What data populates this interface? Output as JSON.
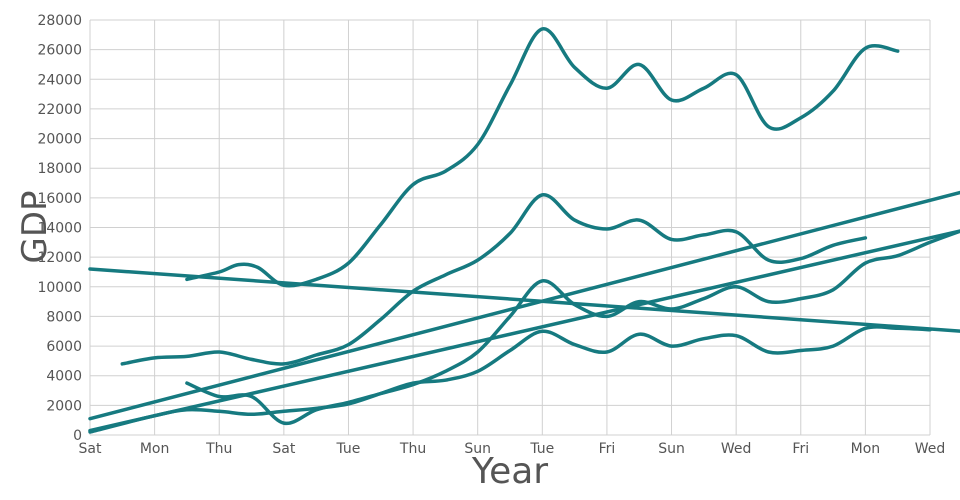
{
  "chart_data": {
    "type": "line",
    "xlabel": "Year",
    "ylabel": "GDP",
    "ylim": [
      0,
      28000
    ],
    "y_ticks": [
      0,
      2000,
      4000,
      6000,
      8000,
      10000,
      12000,
      14000,
      16000,
      18000,
      20000,
      22000,
      24000,
      26000,
      28000
    ],
    "x_ticks": [
      "Sat",
      "Mon",
      "Thu",
      "Sat",
      "Tue",
      "Thu",
      "Sun",
      "Tue",
      "Fri",
      "Sun",
      "Wed",
      "Fri",
      "Mon",
      "Wed"
    ],
    "grid": true,
    "line_color": "#167a80",
    "grid_color": "#d0d0d0",
    "series": [
      {
        "points": [
          [
            0.5,
            4800
          ],
          [
            1,
            5200
          ],
          [
            1.5,
            5300
          ],
          [
            2,
            5600
          ],
          [
            2.5,
            5100
          ],
          [
            3,
            4800
          ],
          [
            3.5,
            5400
          ],
          [
            4,
            6100
          ],
          [
            4.5,
            7800
          ],
          [
            5,
            9700
          ],
          [
            5.5,
            10800
          ],
          [
            6,
            11800
          ],
          [
            6.5,
            13600
          ],
          [
            7,
            16200
          ],
          [
            7.5,
            14500
          ],
          [
            8,
            13900
          ],
          [
            8.5,
            14500
          ],
          [
            9,
            13200
          ],
          [
            9.5,
            13500
          ],
          [
            10,
            13700
          ],
          [
            10.5,
            11800
          ],
          [
            11,
            11900
          ],
          [
            11.5,
            12800
          ],
          [
            12,
            13300
          ]
        ]
      },
      {
        "points": [
          [
            1.5,
            10500
          ],
          [
            2,
            11000
          ],
          [
            2.3,
            11500
          ],
          [
            2.6,
            11300
          ],
          [
            3,
            10100
          ],
          [
            3.5,
            10500
          ],
          [
            4,
            11600
          ],
          [
            4.5,
            14200
          ],
          [
            5,
            16900
          ],
          [
            5.5,
            17800
          ],
          [
            6,
            19600
          ],
          [
            6.5,
            23600
          ],
          [
            7,
            27400
          ],
          [
            7.5,
            24800
          ],
          [
            8,
            23400
          ],
          [
            8.5,
            25000
          ],
          [
            9,
            22600
          ],
          [
            9.5,
            23400
          ],
          [
            10,
            24300
          ],
          [
            10.5,
            20800
          ],
          [
            11,
            21400
          ],
          [
            11.5,
            23200
          ],
          [
            12,
            26100
          ],
          [
            12.5,
            25900
          ]
        ]
      },
      {
        "points": [
          [
            0,
            200
          ],
          [
            1,
            1300
          ],
          [
            1.5,
            1700
          ],
          [
            2,
            1600
          ],
          [
            2.5,
            1400
          ],
          [
            3,
            1600
          ],
          [
            3.5,
            1800
          ],
          [
            4,
            2100
          ],
          [
            4.5,
            2800
          ],
          [
            5,
            3500
          ],
          [
            5.5,
            3700
          ],
          [
            6,
            4300
          ],
          [
            6.5,
            5700
          ],
          [
            7,
            7000
          ],
          [
            7.5,
            6100
          ],
          [
            8,
            5600
          ],
          [
            8.5,
            6800
          ],
          [
            9,
            6000
          ],
          [
            9.5,
            6500
          ],
          [
            10,
            6700
          ],
          [
            10.5,
            5600
          ],
          [
            11,
            5700
          ],
          [
            11.5,
            6000
          ],
          [
            12,
            7200
          ],
          [
            12.5,
            7200
          ],
          [
            13,
            7100
          ]
        ]
      },
      {
        "points": [
          [
            1.5,
            3500
          ],
          [
            2,
            2600
          ],
          [
            2.5,
            2600
          ],
          [
            3,
            800
          ],
          [
            3.5,
            1700
          ],
          [
            4,
            2200
          ],
          [
            4.5,
            2800
          ],
          [
            5,
            3400
          ],
          [
            5.5,
            4300
          ],
          [
            6,
            5600
          ],
          [
            6.5,
            8000
          ],
          [
            7,
            10400
          ],
          [
            7.5,
            8800
          ],
          [
            8,
            8000
          ],
          [
            8.5,
            9000
          ],
          [
            9,
            8500
          ],
          [
            9.5,
            9200
          ],
          [
            10,
            10000
          ],
          [
            10.5,
            9000
          ],
          [
            11,
            9200
          ],
          [
            11.5,
            9800
          ],
          [
            12,
            11600
          ],
          [
            12.5,
            12100
          ],
          [
            13,
            13000
          ],
          [
            13.5,
            13800
          ]
        ]
      },
      {
        "points": [
          [
            0,
            11200
          ],
          [
            13.5,
            7000
          ]
        ]
      },
      {
        "points": [
          [
            0,
            1100
          ],
          [
            13.5,
            16400
          ]
        ]
      },
      {
        "points": [
          [
            0,
            300
          ],
          [
            13.5,
            13800
          ]
        ]
      }
    ]
  }
}
